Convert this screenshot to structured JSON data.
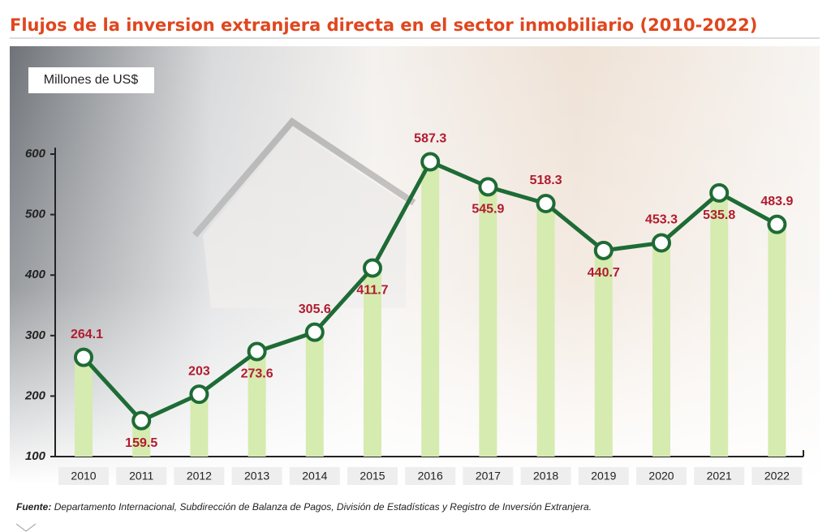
{
  "chart_data": {
    "type": "line",
    "title": "Flujos de la inversion extranjera directa en el sector inmobiliario (2010-2022)",
    "y_axis_label": "Millones de US$",
    "categories": [
      "2010",
      "2011",
      "2012",
      "2013",
      "2014",
      "2015",
      "2016",
      "2017",
      "2018",
      "2019",
      "2020",
      "2021",
      "2022"
    ],
    "values": [
      264.1,
      159.5,
      203,
      273.6,
      305.6,
      411.7,
      587.3,
      545.9,
      518.3,
      440.7,
      453.3,
      535.8,
      483.9
    ],
    "line_color": "#1e6b35",
    "bar_color": "#d6ebb0",
    "label_color": "#b01c2e",
    "ylim": [
      100,
      600
    ],
    "yticks": [
      100,
      200,
      300,
      400,
      500,
      600
    ],
    "source_label": "Fuente:",
    "source_text": "Departamento Internacional, Subdirección de Balanza de Pagos, División de Estadísticas y Registro de Inversión Extranjera."
  }
}
